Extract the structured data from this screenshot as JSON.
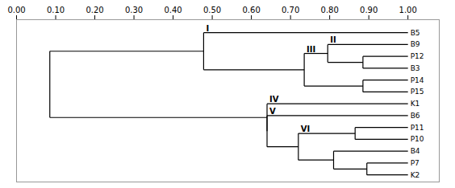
{
  "chart_data": {
    "type": "dendrogram",
    "xlim": [
      0.0,
      1.08
    ],
    "xticks": [
      {
        "value": 0.0,
        "label": "0.00"
      },
      {
        "value": 0.1,
        "label": "0.10"
      },
      {
        "value": 0.2,
        "label": "0.20"
      },
      {
        "value": 0.3,
        "label": "0.30"
      },
      {
        "value": 0.4,
        "label": "0.40"
      },
      {
        "value": 0.5,
        "label": "0.50"
      },
      {
        "value": 0.6,
        "label": "0.60"
      },
      {
        "value": 0.7,
        "label": "0.70"
      },
      {
        "value": 0.8,
        "label": "0.80"
      },
      {
        "value": 0.9,
        "label": "0.90"
      },
      {
        "value": 1.0,
        "label": "1.00"
      }
    ],
    "leaf_x": 1.0,
    "tree": {
      "x": 0.085,
      "children": [
        {
          "x": 0.478,
          "label": "I",
          "children": [
            "B5",
            {
              "x": 0.735,
              "label": "III",
              "children": [
                {
                  "x": 0.795,
                  "label": "II",
                  "children": [
                    "B9",
                    {
                      "x": 0.885,
                      "children": [
                        "P12",
                        "B3"
                      ]
                    }
                  ]
                },
                {
                  "x": 0.885,
                  "children": [
                    "P14",
                    "P15"
                  ]
                }
              ]
            }
          ]
        },
        {
          "x": 0.64,
          "label": "IV",
          "children": [
            "K1",
            {
              "x": 0.64,
              "label": "V",
              "children": [
                "B6",
                {
                  "x": 0.72,
                  "label": "VI",
                  "children": [
                    {
                      "x": 0.865,
                      "children": [
                        "P11",
                        "P10"
                      ]
                    },
                    {
                      "x": 0.81,
                      "children": [
                        "B4",
                        {
                          "x": 0.895,
                          "children": [
                            "P7",
                            "K2"
                          ]
                        }
                      ]
                    }
                  ]
                }
              ]
            }
          ]
        }
      ]
    }
  }
}
